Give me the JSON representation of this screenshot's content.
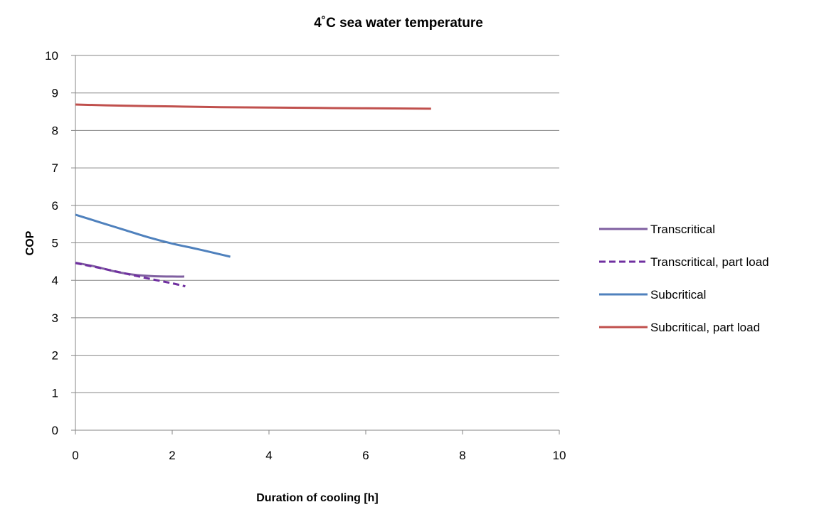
{
  "chart_data": {
    "type": "line",
    "title": "4˚C sea water temperature",
    "xlabel": "Duration of cooling [h]",
    "ylabel": "COP",
    "xlim": [
      0,
      10
    ],
    "ylim": [
      0,
      10
    ],
    "xticks": [
      0,
      2,
      4,
      6,
      8,
      10
    ],
    "yticks": [
      0,
      1,
      2,
      3,
      4,
      5,
      6,
      7,
      8,
      9,
      10
    ],
    "grid": "horizontal",
    "legend_position": "right",
    "series": [
      {
        "name": "Transcritical",
        "color": "#7F5FA0",
        "dash": "solid",
        "points": [
          [
            0,
            4.47
          ],
          [
            0.4,
            4.37
          ],
          [
            0.8,
            4.24
          ],
          [
            1.2,
            4.15
          ],
          [
            1.6,
            4.11
          ],
          [
            2.0,
            4.1
          ],
          [
            2.25,
            4.1
          ]
        ]
      },
      {
        "name": "Transcritical, part load",
        "color": "#7030A0",
        "dash": "dashed",
        "points": [
          [
            0,
            4.46
          ],
          [
            0.5,
            4.33
          ],
          [
            1.0,
            4.19
          ],
          [
            1.5,
            4.05
          ],
          [
            2.0,
            3.92
          ],
          [
            2.27,
            3.84
          ]
        ]
      },
      {
        "name": "Subcritical",
        "color": "#4F81BD",
        "dash": "solid",
        "points": [
          [
            0,
            5.75
          ],
          [
            0.5,
            5.55
          ],
          [
            1.0,
            5.35
          ],
          [
            1.5,
            5.15
          ],
          [
            2.0,
            4.98
          ],
          [
            2.5,
            4.84
          ],
          [
            3.0,
            4.69
          ],
          [
            3.2,
            4.63
          ]
        ]
      },
      {
        "name": "Subcritical, part load",
        "color": "#C0504D",
        "dash": "solid",
        "points": [
          [
            0,
            8.69
          ],
          [
            1,
            8.66
          ],
          [
            2,
            8.64
          ],
          [
            3,
            8.62
          ],
          [
            4,
            8.61
          ],
          [
            5,
            8.6
          ],
          [
            6,
            8.59
          ],
          [
            7.35,
            8.58
          ]
        ]
      }
    ]
  }
}
